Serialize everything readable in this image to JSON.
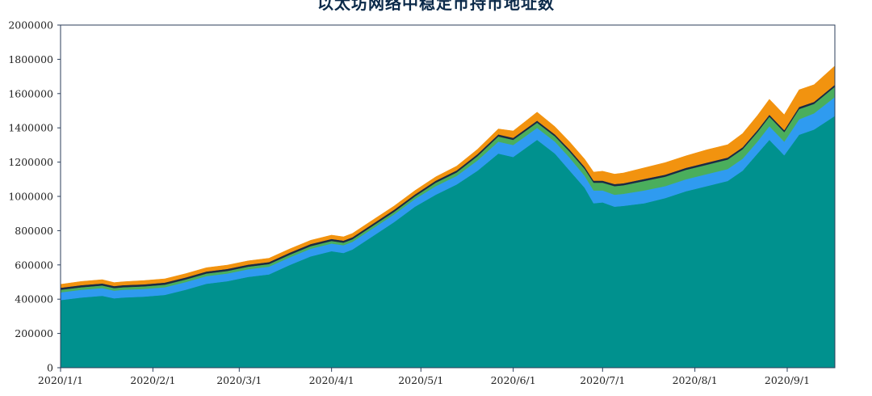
{
  "chart_data": {
    "type": "area",
    "title": "以太坊网络中稳定币持币地址数",
    "xlabel": "",
    "ylabel": "",
    "ylim": [
      0,
      2000000
    ],
    "y_ticks": [
      0,
      200000,
      400000,
      600000,
      800000,
      1000000,
      1200000,
      1400000,
      1600000,
      1800000,
      2000000
    ],
    "x_range": [
      "2020-01-01",
      "2020-09-17"
    ],
    "x_ticks": [
      {
        "date": "2020-01-01",
        "label": "2020/1/1"
      },
      {
        "date": "2020-02-01",
        "label": "2020/2/1"
      },
      {
        "date": "2020-03-01",
        "label": "2020/3/1"
      },
      {
        "date": "2020-04-01",
        "label": "2020/4/1"
      },
      {
        "date": "2020-05-01",
        "label": "2020/5/1"
      },
      {
        "date": "2020-06-01",
        "label": "2020/6/1"
      },
      {
        "date": "2020-07-01",
        "label": "2020/7/1"
      },
      {
        "date": "2020-08-01",
        "label": "2020/8/1"
      },
      {
        "date": "2020-09-01",
        "label": "2020/9/1"
      }
    ],
    "stacked": true,
    "grid": false,
    "legend": "none",
    "dates": [
      "2020-01-01",
      "2020-01-08",
      "2020-01-15",
      "2020-01-19",
      "2020-01-22",
      "2020-01-29",
      "2020-02-05",
      "2020-02-12",
      "2020-02-19",
      "2020-02-26",
      "2020-03-04",
      "2020-03-11",
      "2020-03-18",
      "2020-03-25",
      "2020-04-01",
      "2020-04-05",
      "2020-04-08",
      "2020-04-15",
      "2020-04-22",
      "2020-04-29",
      "2020-05-06",
      "2020-05-13",
      "2020-05-20",
      "2020-05-27",
      "2020-06-01",
      "2020-06-05",
      "2020-06-09",
      "2020-06-15",
      "2020-06-20",
      "2020-06-25",
      "2020-06-28",
      "2020-07-01",
      "2020-07-05",
      "2020-07-08",
      "2020-07-15",
      "2020-07-22",
      "2020-07-29",
      "2020-08-05",
      "2020-08-12",
      "2020-08-17",
      "2020-08-22",
      "2020-08-26",
      "2020-08-31",
      "2020-09-05",
      "2020-09-10",
      "2020-09-17"
    ],
    "series": [
      {
        "color": "#00918e",
        "values": [
          395000,
          410000,
          420000,
          405000,
          410000,
          415000,
          425000,
          455000,
          490000,
          505000,
          530000,
          545000,
          600000,
          650000,
          680000,
          670000,
          690000,
          770000,
          850000,
          940000,
          1010000,
          1070000,
          1150000,
          1250000,
          1230000,
          1280000,
          1330000,
          1250000,
          1150000,
          1050000,
          960000,
          965000,
          940000,
          945000,
          960000,
          990000,
          1030000,
          1060000,
          1090000,
          1150000,
          1250000,
          1330000,
          1240000,
          1360000,
          1390000,
          1470000
        ]
      },
      {
        "color": "#2f9bf0",
        "values": [
          45000,
          45000,
          45000,
          45000,
          45000,
          45000,
          45000,
          45000,
          45000,
          45000,
          45000,
          45000,
          45000,
          45000,
          45000,
          45000,
          45000,
          45000,
          45000,
          45000,
          50000,
          50000,
          60000,
          70000,
          70000,
          70000,
          70000,
          70000,
          75000,
          70000,
          75000,
          70000,
          70000,
          70000,
          75000,
          70000,
          70000,
          70000,
          70000,
          70000,
          70000,
          80000,
          80000,
          90000,
          95000,
          110000
        ]
      },
      {
        "color": "#4aae5c",
        "values": [
          15000,
          15000,
          15000,
          15000,
          15000,
          15000,
          15000,
          15000,
          15000,
          15000,
          15000,
          15000,
          15000,
          15000,
          15000,
          15000,
          15000,
          15000,
          15000,
          15000,
          20000,
          20000,
          25000,
          30000,
          30000,
          30000,
          30000,
          30000,
          35000,
          40000,
          45000,
          45000,
          50000,
          50000,
          55000,
          55000,
          55000,
          55000,
          55000,
          55000,
          55000,
          55000,
          55000,
          60000,
          55000,
          60000
        ]
      },
      {
        "color": "#1b2a44",
        "values": [
          12000,
          12000,
          12000,
          12000,
          12000,
          12000,
          12000,
          12000,
          12000,
          12000,
          12000,
          12000,
          12000,
          12000,
          12000,
          12000,
          12000,
          12000,
          12000,
          12000,
          12000,
          12000,
          12000,
          12000,
          12000,
          12000,
          12000,
          12000,
          12000,
          12000,
          12000,
          12000,
          12000,
          12000,
          12000,
          12000,
          12000,
          12000,
          12000,
          12000,
          12000,
          12000,
          12000,
          12000,
          12000,
          12000
        ]
      },
      {
        "color": "#f2930f",
        "values": [
          20000,
          22000,
          22000,
          20000,
          20000,
          22000,
          22000,
          22000,
          22000,
          22000,
          22000,
          22000,
          22000,
          22000,
          22000,
          22000,
          22000,
          22000,
          22000,
          22000,
          22000,
          25000,
          28000,
          32000,
          40000,
          45000,
          50000,
          45000,
          45000,
          45000,
          50000,
          55000,
          58000,
          60000,
          65000,
          70000,
          70000,
          75000,
          75000,
          80000,
          85000,
          90000,
          90000,
          100000,
          100000,
          110000
        ]
      }
    ]
  }
}
